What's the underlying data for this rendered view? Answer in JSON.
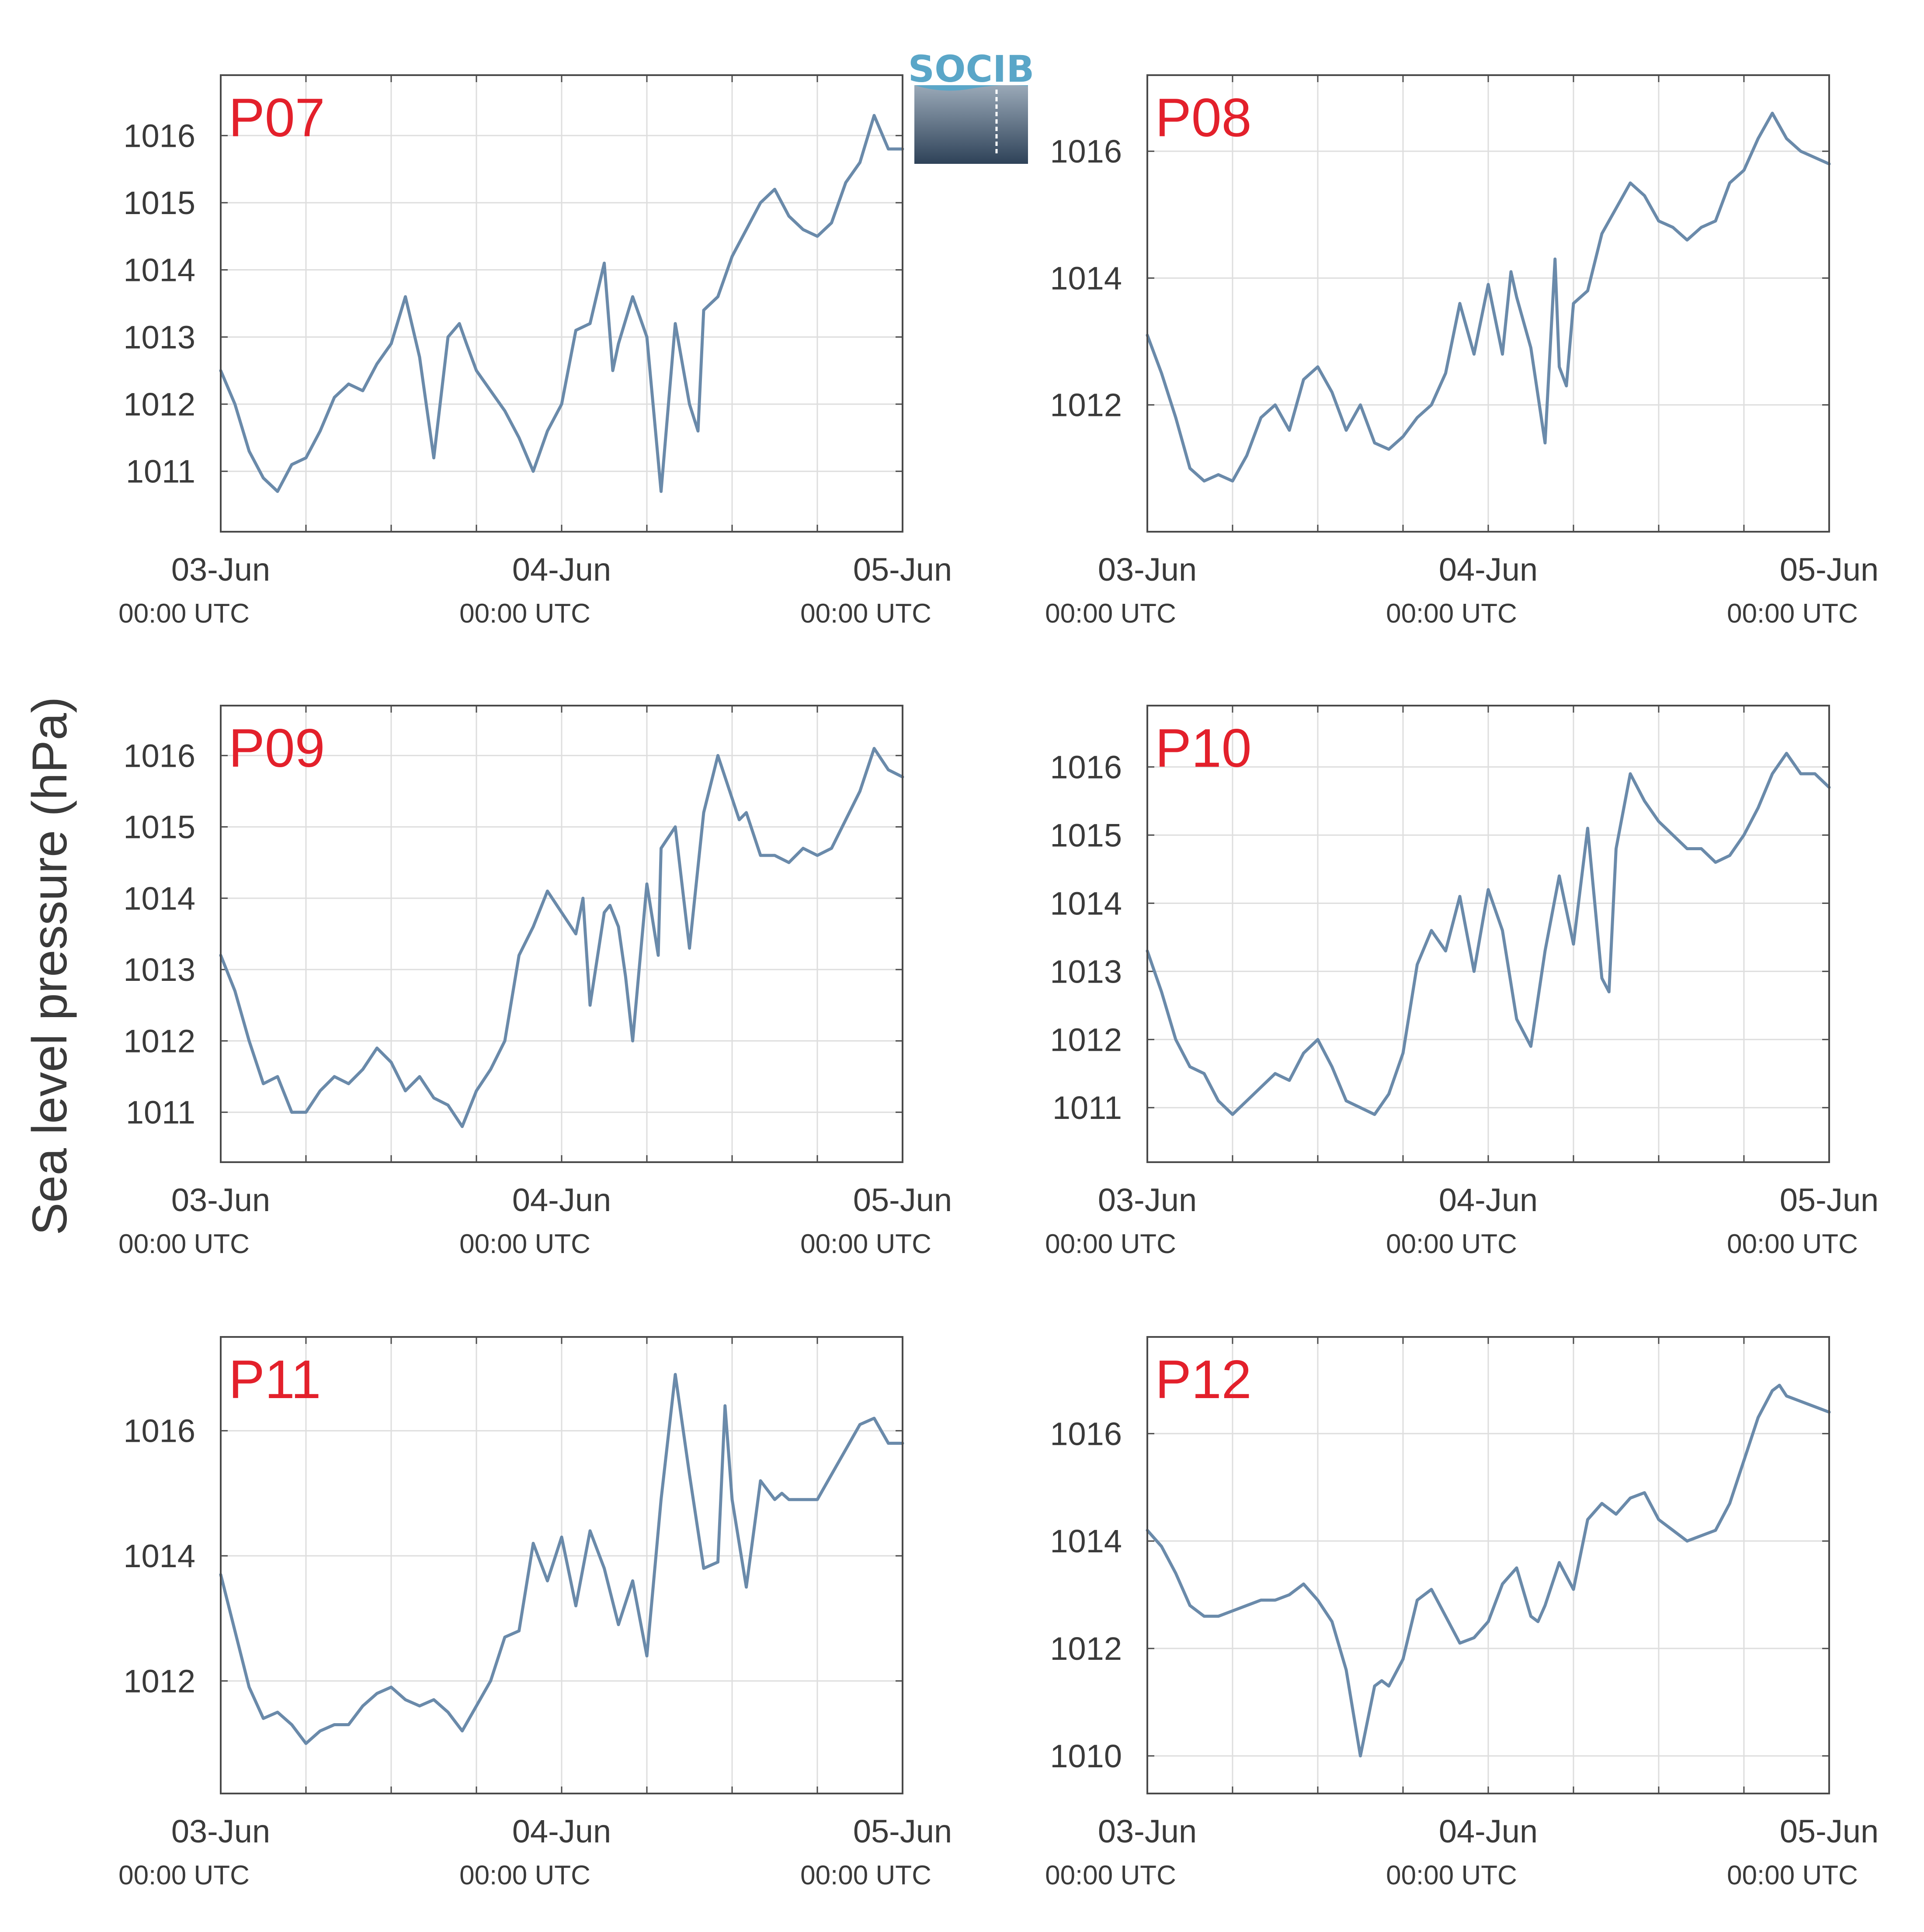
{
  "figure": {
    "ylabel": "Sea level pressure (hPa)",
    "logo_text": "SOCIB",
    "colors": {
      "line": "#6a8aaa",
      "panel_label": "#e3202b",
      "grid": "#dedede",
      "axis": "#4a4a4a"
    }
  },
  "chart_data": [
    {
      "type": "line",
      "title": "P07",
      "xlim": [
        "2023-06-03 00:00",
        "2023-06-05 00:00"
      ],
      "xticks": [
        {
          "date": "03-Jun",
          "time": "00:00 UTC"
        },
        {
          "date": "04-Jun",
          "time": "00:00 UTC"
        },
        {
          "date": "05-Jun",
          "time": "00:00 UTC"
        }
      ],
      "ylim": [
        1010.1,
        1016.9
      ],
      "yticks": [
        1011,
        1012,
        1013,
        1014,
        1015,
        1016
      ],
      "grid": true,
      "x_hours": [
        0,
        1,
        2,
        3,
        4,
        5,
        6,
        7,
        8,
        9,
        10,
        11,
        12,
        13,
        14,
        15,
        16,
        16.8,
        17.3,
        18,
        19,
        20,
        21,
        22,
        23,
        24,
        25,
        26,
        27,
        27.6,
        28,
        29,
        30,
        31,
        32,
        33,
        33.6,
        34,
        35,
        36,
        37,
        38,
        39,
        40,
        41,
        42,
        43,
        44,
        45,
        46,
        47,
        48
      ],
      "values": [
        1012.5,
        1012.0,
        1011.3,
        1010.9,
        1010.7,
        1011.1,
        1011.2,
        1011.6,
        1012.1,
        1012.3,
        1012.2,
        1012.6,
        1012.9,
        1013.6,
        1012.7,
        1011.2,
        1013.0,
        1013.2,
        1012.9,
        1012.5,
        1012.2,
        1011.9,
        1011.5,
        1011.0,
        1011.6,
        1012.0,
        1013.1,
        1013.2,
        1014.1,
        1012.5,
        1012.9,
        1013.6,
        1013.0,
        1010.7,
        1013.2,
        1012.0,
        1011.6,
        1013.4,
        1013.6,
        1014.2,
        1014.6,
        1015.0,
        1015.2,
        1014.8,
        1014.6,
        1014.5,
        1014.7,
        1015.3,
        1015.6,
        1016.3,
        1015.8,
        1015.8
      ]
    },
    {
      "type": "line",
      "title": "P08",
      "xlim": [
        "2023-06-03 00:00",
        "2023-06-05 00:00"
      ],
      "xticks": [
        {
          "date": "03-Jun",
          "time": "00:00 UTC"
        },
        {
          "date": "04-Jun",
          "time": "00:00 UTC"
        },
        {
          "date": "05-Jun",
          "time": "00:00 UTC"
        }
      ],
      "ylim": [
        1010.0,
        1017.2
      ],
      "yticks": [
        1012,
        1014,
        1016
      ],
      "grid": true,
      "x_hours": [
        0,
        1,
        2,
        3,
        4,
        5,
        6,
        7,
        8,
        9,
        10,
        11,
        12,
        13,
        14,
        15,
        16,
        17,
        18,
        19,
        20,
        21,
        22,
        23,
        24,
        25,
        25.6,
        26,
        27,
        28,
        28.7,
        29,
        29.5,
        30,
        31,
        32,
        33,
        34,
        35,
        36,
        37,
        38,
        39,
        40,
        41,
        42,
        43,
        44,
        45,
        46,
        47,
        48
      ],
      "values": [
        1013.1,
        1012.5,
        1011.8,
        1011.0,
        1010.8,
        1010.9,
        1010.8,
        1011.2,
        1011.8,
        1012.0,
        1011.6,
        1012.4,
        1012.6,
        1012.2,
        1011.6,
        1012.0,
        1011.4,
        1011.3,
        1011.5,
        1011.8,
        1012.0,
        1012.5,
        1013.6,
        1012.8,
        1013.9,
        1012.8,
        1014.1,
        1013.7,
        1012.9,
        1011.4,
        1014.3,
        1012.6,
        1012.3,
        1013.6,
        1013.8,
        1014.7,
        1015.1,
        1015.5,
        1015.3,
        1014.9,
        1014.8,
        1014.6,
        1014.8,
        1014.9,
        1015.5,
        1015.7,
        1016.2,
        1016.6,
        1016.2,
        1016.0,
        1015.9,
        1015.8
      ]
    },
    {
      "type": "line",
      "title": "P09",
      "xlim": [
        "2023-06-03 00:00",
        "2023-06-05 00:00"
      ],
      "xticks": [
        {
          "date": "03-Jun",
          "time": "00:00 UTC"
        },
        {
          "date": "04-Jun",
          "time": "00:00 UTC"
        },
        {
          "date": "05-Jun",
          "time": "00:00 UTC"
        }
      ],
      "ylim": [
        1010.3,
        1016.7
      ],
      "yticks": [
        1011,
        1012,
        1013,
        1014,
        1015,
        1016
      ],
      "grid": true,
      "x_hours": [
        0,
        1,
        2,
        3,
        4,
        5,
        6,
        7,
        8,
        9,
        10,
        11,
        12,
        13,
        14,
        15,
        16,
        17,
        18,
        19,
        20,
        21,
        22,
        23,
        24,
        25,
        25.5,
        26,
        27,
        27.4,
        28,
        28.5,
        29,
        30,
        30.8,
        31,
        32,
        33,
        34,
        35,
        36,
        36.5,
        37,
        38,
        39,
        40,
        41,
        42,
        43,
        44,
        45,
        46,
        47,
        48
      ],
      "values": [
        1013.2,
        1012.7,
        1012.0,
        1011.4,
        1011.5,
        1011.0,
        1011.0,
        1011.3,
        1011.5,
        1011.4,
        1011.6,
        1011.9,
        1011.7,
        1011.3,
        1011.5,
        1011.2,
        1011.1,
        1010.8,
        1011.3,
        1011.6,
        1012.0,
        1013.2,
        1013.6,
        1014.1,
        1013.8,
        1013.5,
        1014.0,
        1012.5,
        1013.8,
        1013.9,
        1013.6,
        1012.9,
        1012.0,
        1014.2,
        1013.2,
        1014.7,
        1015.0,
        1013.3,
        1015.2,
        1016.0,
        1015.4,
        1015.1,
        1015.2,
        1014.6,
        1014.6,
        1014.5,
        1014.7,
        1014.6,
        1014.7,
        1015.1,
        1015.5,
        1016.1,
        1015.8,
        1015.7
      ]
    },
    {
      "type": "line",
      "title": "P10",
      "xlim": [
        "2023-06-03 00:00",
        "2023-06-05 00:00"
      ],
      "xticks": [
        {
          "date": "03-Jun",
          "time": "00:00 UTC"
        },
        {
          "date": "04-Jun",
          "time": "00:00 UTC"
        },
        {
          "date": "05-Jun",
          "time": "00:00 UTC"
        }
      ],
      "ylim": [
        1010.2,
        1016.9
      ],
      "yticks": [
        1011,
        1012,
        1013,
        1014,
        1015,
        1016
      ],
      "grid": true,
      "x_hours": [
        0,
        1,
        2,
        3,
        4,
        5,
        6,
        7,
        8,
        9,
        10,
        11,
        12,
        13,
        14,
        15,
        16,
        17,
        18,
        19,
        20,
        21,
        22,
        23,
        24,
        25,
        26,
        27,
        28,
        29,
        30,
        31,
        32,
        32.5,
        33,
        34,
        35,
        36,
        37,
        38,
        39,
        40,
        41,
        42,
        43,
        44,
        45,
        46,
        47,
        48
      ],
      "values": [
        1013.3,
        1012.7,
        1012.0,
        1011.6,
        1011.5,
        1011.1,
        1010.9,
        1011.1,
        1011.3,
        1011.5,
        1011.4,
        1011.8,
        1012.0,
        1011.6,
        1011.1,
        1011.0,
        1010.9,
        1011.2,
        1011.8,
        1013.1,
        1013.6,
        1013.3,
        1014.1,
        1013.0,
        1014.2,
        1013.6,
        1012.3,
        1011.9,
        1013.3,
        1014.4,
        1013.4,
        1015.1,
        1012.9,
        1012.7,
        1014.8,
        1015.9,
        1015.5,
        1015.2,
        1015.0,
        1014.8,
        1014.8,
        1014.6,
        1014.7,
        1015.0,
        1015.4,
        1015.9,
        1016.2,
        1015.9,
        1015.9,
        1015.7
      ]
    },
    {
      "type": "line",
      "title": "P11",
      "xlim": [
        "2023-06-03 00:00",
        "2023-06-05 00:00"
      ],
      "xticks": [
        {
          "date": "03-Jun",
          "time": "00:00 UTC"
        },
        {
          "date": "04-Jun",
          "time": "00:00 UTC"
        },
        {
          "date": "05-Jun",
          "time": "00:00 UTC"
        }
      ],
      "ylim": [
        1010.2,
        1017.5
      ],
      "yticks": [
        1012,
        1014,
        1016
      ],
      "grid": true,
      "x_hours": [
        0,
        1,
        2,
        3,
        4,
        5,
        6,
        7,
        8,
        9,
        10,
        11,
        12,
        13,
        14,
        15,
        16,
        17,
        18,
        19,
        20,
        21,
        22,
        23,
        24,
        25,
        26,
        27,
        28,
        29,
        30,
        31,
        32,
        33,
        34,
        35,
        35.5,
        36,
        37,
        38,
        39,
        39.5,
        40,
        41,
        42,
        43,
        44,
        45,
        46,
        47,
        48
      ],
      "values": [
        1013.7,
        1012.8,
        1011.9,
        1011.4,
        1011.5,
        1011.3,
        1011.0,
        1011.2,
        1011.3,
        1011.3,
        1011.6,
        1011.8,
        1011.9,
        1011.7,
        1011.6,
        1011.7,
        1011.5,
        1011.2,
        1011.6,
        1012.0,
        1012.7,
        1012.8,
        1014.2,
        1013.6,
        1014.3,
        1013.2,
        1014.4,
        1013.8,
        1012.9,
        1013.6,
        1012.4,
        1014.9,
        1016.9,
        1015.3,
        1013.8,
        1013.9,
        1016.4,
        1014.9,
        1013.5,
        1015.2,
        1014.9,
        1015.0,
        1014.9,
        1014.9,
        1014.9,
        1015.3,
        1015.7,
        1016.1,
        1016.2,
        1015.8,
        1015.8
      ]
    },
    {
      "type": "line",
      "title": "P12",
      "xlim": [
        "2023-06-03 00:00",
        "2023-06-05 00:00"
      ],
      "xticks": [
        {
          "date": "03-Jun",
          "time": "00:00 UTC"
        },
        {
          "date": "04-Jun",
          "time": "00:00 UTC"
        },
        {
          "date": "05-Jun",
          "time": "00:00 UTC"
        }
      ],
      "ylim": [
        1009.3,
        1017.8
      ],
      "yticks": [
        1010,
        1012,
        1014,
        1016
      ],
      "grid": true,
      "x_hours": [
        0,
        1,
        2,
        3,
        4,
        5,
        6,
        7,
        8,
        9,
        10,
        11,
        12,
        13,
        14,
        15,
        16,
        16.5,
        17,
        18,
        19,
        20,
        21,
        22,
        23,
        24,
        25,
        26,
        27,
        27.5,
        28,
        29,
        30,
        31,
        32,
        33,
        34,
        35,
        36,
        37,
        38,
        39,
        40,
        41,
        42,
        43,
        44,
        44.5,
        45,
        46,
        47,
        48
      ],
      "values": [
        1014.2,
        1013.9,
        1013.4,
        1012.8,
        1012.6,
        1012.6,
        1012.7,
        1012.8,
        1012.9,
        1012.9,
        1013.0,
        1013.2,
        1012.9,
        1012.5,
        1011.6,
        1010.0,
        1011.3,
        1011.4,
        1011.3,
        1011.8,
        1012.9,
        1013.1,
        1012.6,
        1012.1,
        1012.2,
        1012.5,
        1013.2,
        1013.5,
        1012.6,
        1012.5,
        1012.8,
        1013.6,
        1013.1,
        1014.4,
        1014.7,
        1014.5,
        1014.8,
        1014.9,
        1014.4,
        1014.2,
        1014.0,
        1014.1,
        1014.2,
        1014.7,
        1015.5,
        1016.3,
        1016.8,
        1016.9,
        1016.7,
        1016.6,
        1016.5,
        1016.4
      ]
    }
  ]
}
